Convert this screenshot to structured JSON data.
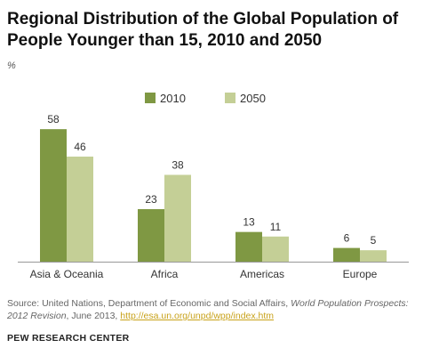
{
  "chart_data": {
    "type": "bar",
    "title": "Regional Distribution of the Global Population of People Younger than 15, 2010 and 2050",
    "unit": "%",
    "categories": [
      "Asia & Oceania",
      "Africa",
      "Americas",
      "Europe"
    ],
    "series": [
      {
        "name": "2010",
        "values": [
          58,
          23,
          13,
          6
        ],
        "color": "#7f9843"
      },
      {
        "name": "2050",
        "values": [
          46,
          38,
          11,
          5
        ],
        "color": "#c4cf96"
      }
    ],
    "ylim": [
      0,
      60
    ],
    "grid": false,
    "legend_position": "top"
  },
  "footer": {
    "source_prefix": "Source: United Nations, Department of Economic and Social Affairs, ",
    "source_pub": "World Population Prospects: 2012 Revision",
    "source_mid": ", June 2013, ",
    "source_link": "http://esa.un.org/unpd/wpp/index.htm",
    "org": "PEW RESEARCH CENTER"
  }
}
